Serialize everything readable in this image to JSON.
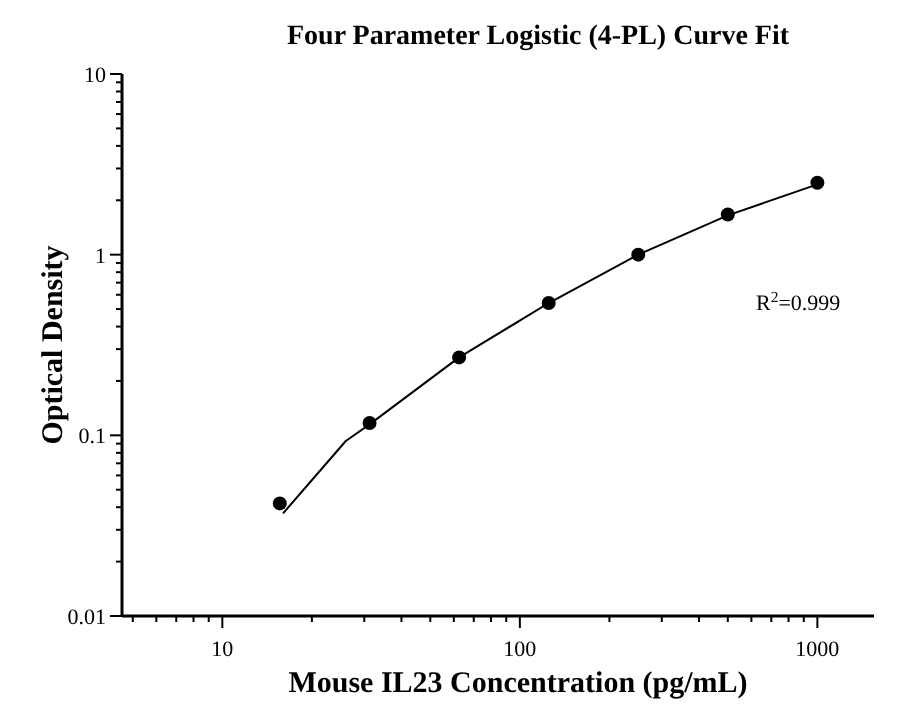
{
  "chart_data": {
    "type": "scatter",
    "title": "Four Parameter Logistic (4-PL) Curve Fit",
    "xlabel": "Mouse IL23 Concentration (pg/mL)",
    "ylabel": "Optical Density",
    "log": "xy",
    "marker": "circle",
    "grid": false,
    "annotations": [
      "R$^{2}$=0.999"
    ],
    "xlim": [
      4.6,
      1550
    ],
    "ylim": [
      0.01,
      10
    ],
    "xticks": [
      {
        "value": 5,
        "label": null
      },
      {
        "value": 6,
        "label": null
      },
      {
        "value": 7,
        "label": null
      },
      {
        "value": 8,
        "label": null
      },
      {
        "value": 9,
        "label": null
      },
      10,
      {
        "value": 20,
        "label": null
      },
      {
        "value": 30,
        "label": null
      },
      {
        "value": 40,
        "label": null
      },
      {
        "value": 50,
        "label": null
      },
      {
        "value": 60,
        "label": null
      },
      {
        "value": 70,
        "label": null
      },
      {
        "value": 80,
        "label": null
      },
      {
        "value": 90,
        "label": null
      },
      100,
      {
        "value": 200,
        "label": null
      },
      {
        "value": 300,
        "label": null
      },
      {
        "value": 400,
        "label": null
      },
      {
        "value": 500,
        "label": null
      },
      {
        "value": 600,
        "label": null
      },
      {
        "value": 700,
        "label": null
      },
      {
        "value": 800,
        "label": null
      },
      {
        "value": 900,
        "label": null
      },
      1000
    ],
    "yticks": [
      0.01,
      {
        "value": 0.02,
        "label": null
      },
      {
        "value": 0.03,
        "label": null
      },
      {
        "value": 0.04,
        "label": null
      },
      {
        "value": 0.05,
        "label": null
      },
      {
        "value": 0.06,
        "label": null
      },
      {
        "value": 0.07,
        "label": null
      },
      {
        "value": 0.08,
        "label": null
      },
      {
        "value": 0.09,
        "label": null
      },
      0.1,
      {
        "value": 0.2,
        "label": null
      },
      {
        "value": 0.3,
        "label": null
      },
      {
        "value": 0.4,
        "label": null
      },
      {
        "value": 0.5,
        "label": null
      },
      {
        "value": 0.6,
        "label": null
      },
      {
        "value": 0.7,
        "label": null
      },
      {
        "value": 0.8,
        "label": null
      },
      {
        "value": 0.9,
        "label": null
      },
      1,
      {
        "value": 2,
        "label": null
      },
      {
        "value": 3,
        "label": null
      },
      {
        "value": 4,
        "label": null
      },
      {
        "value": 5,
        "label": null
      },
      {
        "value": 6,
        "label": null
      },
      {
        "value": 7,
        "label": null
      },
      {
        "value": 8,
        "label": null
      },
      {
        "value": 9,
        "label": null
      },
      10
    ],
    "series": [
      {
        "type": "line",
        "marker": "none",
        "color": "#000000",
        "x": [
          16,
          26,
          31.25,
          62.5,
          125,
          250,
          500,
          1000
        ],
        "values": [
          0.037,
          0.093,
          0.115,
          0.27,
          0.54,
          1.0,
          1.65,
          2.45
        ]
      },
      {
        "color": "#000000",
        "x": [
          15.6,
          31.25,
          62.5,
          125,
          250,
          500,
          1000
        ],
        "values": [
          0.042,
          0.117,
          0.27,
          0.54,
          1.0,
          1.67,
          2.5
        ]
      }
    ]
  }
}
